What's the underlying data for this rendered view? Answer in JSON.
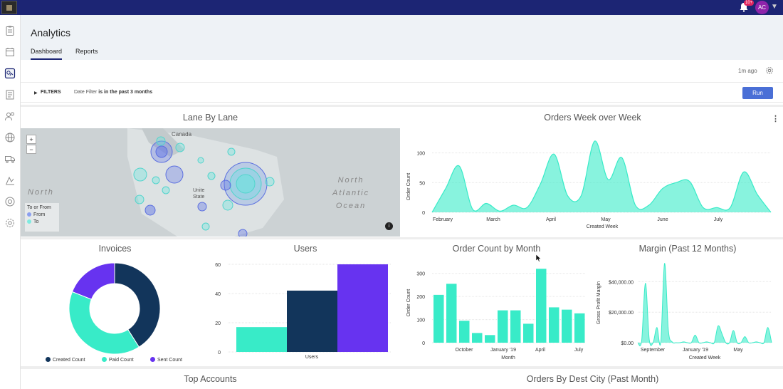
{
  "topbar": {
    "notification_badge": "10+",
    "avatar_initials": "AC"
  },
  "header": {
    "title": "Analytics",
    "tabs": [
      {
        "label": "Dashboard",
        "active": true
      },
      {
        "label": "Reports",
        "active": false
      }
    ]
  },
  "toolbar": {
    "last_run": "1m ago"
  },
  "filters": {
    "label": "FILTERS",
    "field": "Date Filter",
    "condition": "is in the past 3 months",
    "run_label": "Run"
  },
  "panels": {
    "lane": {
      "title": "Lane By Lane",
      "labels": {
        "canada": "Canada",
        "north": "North",
        "atlantic_ocean": "North\nAtlantic\nOcean",
        "united": "Unite",
        "states": "State",
        "legend_title": "To or From",
        "legend_from": "From",
        "legend_to": "To"
      }
    },
    "orders_week": {
      "title": "Orders Week over Week"
    },
    "invoices": {
      "title": "Invoices"
    },
    "users": {
      "title": "Users"
    },
    "order_month": {
      "title": "Order Count by Month"
    },
    "margin": {
      "title": "Margin (Past 12 Months)"
    },
    "top_accounts": {
      "title": "Top Accounts"
    },
    "dest_city": {
      "title": "Orders By Dest City (Past Month)"
    }
  },
  "colors": {
    "accent": "#38ebc8",
    "navy": "#12355b",
    "violet": "#6733f0",
    "topbar": "#1c2574"
  },
  "chart_data": [
    {
      "type": "area",
      "title": "Orders Week over Week",
      "xlabel": "Created Week",
      "ylabel": "Order Count",
      "ylim": [
        0,
        120
      ],
      "x_ticks": [
        "February",
        "March",
        "April",
        "May",
        "June",
        "July"
      ],
      "y_ticks": [
        "0",
        "50",
        "100"
      ],
      "x": [
        0,
        1,
        2,
        3,
        4,
        5,
        6,
        7,
        8,
        9,
        10,
        11,
        12,
        13,
        14,
        15,
        16,
        17,
        18,
        19,
        20,
        21,
        22,
        23,
        24,
        25
      ],
      "values": [
        0,
        40,
        78,
        5,
        15,
        2,
        12,
        8,
        48,
        98,
        28,
        28,
        120,
        55,
        92,
        12,
        12,
        40,
        50,
        52,
        8,
        8,
        8,
        68,
        30,
        0
      ]
    },
    {
      "type": "pie",
      "title": "Invoices",
      "categories": [
        "Created Count",
        "Paid Count",
        "Sent Count"
      ],
      "values": [
        41,
        40,
        19
      ]
    },
    {
      "type": "bar",
      "title": "Users",
      "categories": [
        "Users"
      ],
      "ylim": [
        0,
        60
      ],
      "y_ticks": [
        "0",
        "20",
        "40",
        "60"
      ],
      "series": [
        {
          "name": "",
          "values": [
            17
          ]
        },
        {
          "name": "",
          "values": [
            42
          ]
        },
        {
          "name": "",
          "values": [
            60
          ]
        }
      ]
    },
    {
      "type": "bar",
      "title": "Order Count by Month",
      "xlabel": "Month",
      "ylabel": "Order Count",
      "ylim": [
        0,
        330
      ],
      "x_ticks": [
        "October",
        "January '19",
        "April",
        "July"
      ],
      "y_ticks": [
        "0",
        "100",
        "200",
        "300"
      ],
      "values": [
        207,
        255,
        95,
        42,
        33,
        140,
        140,
        82,
        320,
        153,
        143,
        127
      ]
    },
    {
      "type": "area",
      "title": "Margin (Past 12 Months)",
      "xlabel": "Created Week",
      "ylabel": "Gross Profit Margin",
      "ylim": [
        0,
        50000
      ],
      "x_ticks": [
        "September",
        "January '19",
        "May"
      ],
      "y_ticks": [
        "$0.00",
        "$20,000.00",
        "$40,000.00"
      ],
      "values": [
        0,
        1000,
        39000,
        2000,
        0,
        10000,
        0,
        52000,
        8000,
        500,
        0,
        0,
        500,
        0,
        0,
        5000,
        0,
        0,
        500,
        0,
        0,
        11000,
        6000,
        0,
        0,
        8000,
        0,
        0,
        4000,
        0,
        0,
        500,
        0,
        0,
        10000,
        0
      ]
    }
  ]
}
